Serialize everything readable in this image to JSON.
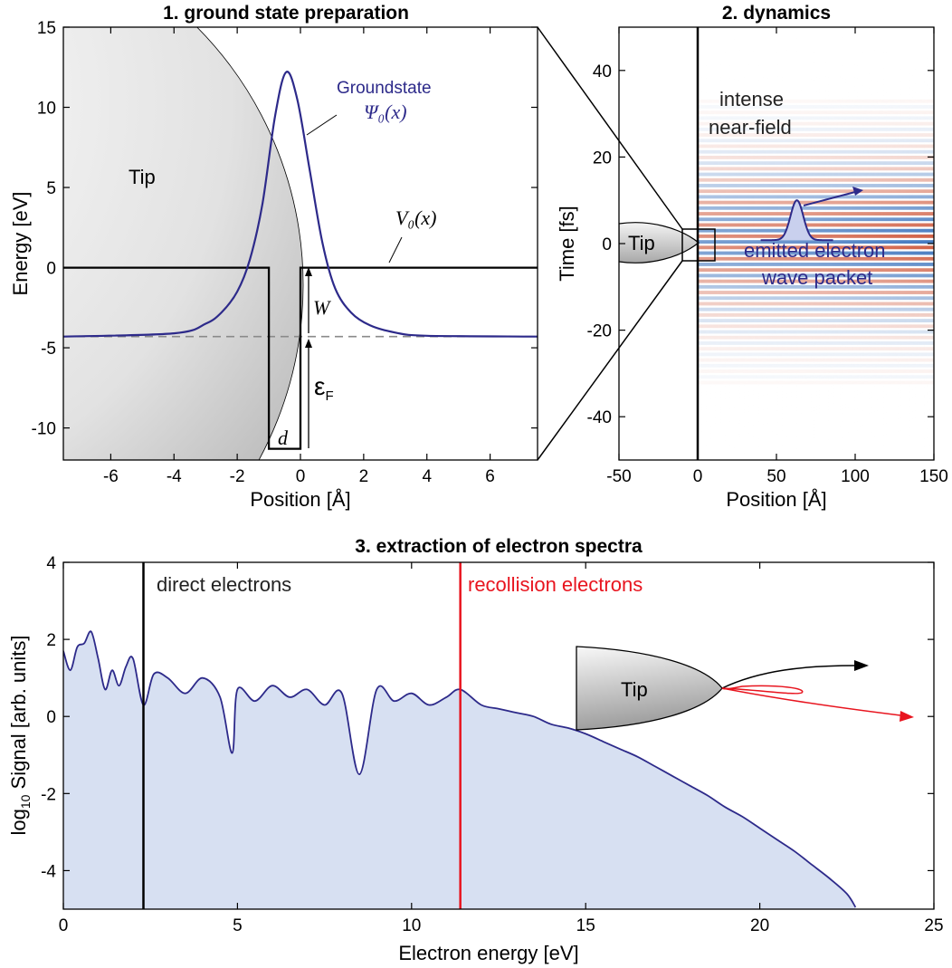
{
  "chart_data": [
    {
      "id": "ground-state",
      "type": "line",
      "title": "1. ground state preparation",
      "xlabel": "Position [Å]",
      "ylabel": "Energy [eV]",
      "xlim": [
        -7.5,
        7.5
      ],
      "ylim": [
        -12,
        15
      ],
      "xticks": [
        -6,
        -4,
        -2,
        0,
        2,
        4,
        6
      ],
      "yticks": [
        -10,
        -5,
        0,
        5,
        10,
        15
      ],
      "grid": false,
      "annotations": {
        "tip": "Tip",
        "groundstate": "Groundstate",
        "psi": "Ψ₀(x)",
        "potential": "V₀(x)",
        "work_function": "W",
        "fermi_symbol": "ε",
        "fermi_sub": "F",
        "width": "d"
      },
      "parameters": {
        "fermi_level": -4.3,
        "well_depth": -11.3,
        "well_left": -1.0,
        "well_right": 0.0,
        "psi_peak_x": -0.45,
        "psi_peak_y": 12.2
      },
      "series": [
        {
          "id": "potential",
          "color": "#000000",
          "x": [
            -7.5,
            -1.0,
            -1.0,
            0.0,
            0.0,
            7.5
          ],
          "y": [
            0,
            0,
            -11.3,
            -11.3,
            0,
            0
          ]
        },
        {
          "id": "groundstate",
          "color": "#2d2a8a",
          "x": [
            -7.5,
            -4,
            -3,
            -2.5,
            -2,
            -1.6,
            -1.2,
            -0.8,
            -0.45,
            -0.1,
            0.3,
            0.7,
            1.1,
            1.6,
            2.2,
            3,
            4,
            7.5
          ],
          "y": [
            -4.3,
            -4.1,
            -3.5,
            -2.8,
            -1.5,
            0.5,
            4.0,
            9.5,
            12.2,
            10.5,
            6.0,
            1.5,
            -1.3,
            -2.8,
            -3.6,
            -4.05,
            -4.25,
            -4.3
          ]
        },
        {
          "id": "fermi-level",
          "color": "#888888",
          "x": [
            -7.5,
            7.5
          ],
          "y": [
            -4.3,
            -4.3
          ]
        }
      ]
    },
    {
      "id": "dynamics",
      "type": "heatmap",
      "title": "2. dynamics",
      "xlabel": "Position [Å]",
      "ylabel": "Time [fs]",
      "xlim": [
        -50,
        150
      ],
      "ylim": [
        -50,
        50
      ],
      "xticks": [
        -50,
        0,
        50,
        100,
        150
      ],
      "yticks": [
        -40,
        -20,
        0,
        20,
        40
      ],
      "grid": false,
      "annotations": {
        "near_field_1": "intense",
        "near_field_2": "near-field",
        "packet_1": "emitted electron",
        "packet_2": "wave packet",
        "tip": "Tip"
      },
      "field": {
        "x_start": 0,
        "time_span": [
          -33,
          33
        ],
        "period_fs": 2.6,
        "colors": [
          "#c8401f",
          "#1f5fb4"
        ]
      }
    },
    {
      "id": "spectra",
      "type": "area",
      "title": "3. extraction of electron spectra",
      "xlabel": "Electron energy [eV]",
      "ylabel_prefix": "log",
      "ylabel_sub": "10",
      "ylabel_suffix": " Signal [arb. units]",
      "xlim": [
        0,
        25
      ],
      "ylim": [
        -5,
        4
      ],
      "xticks": [
        0,
        5,
        10,
        15,
        20,
        25
      ],
      "yticks": [
        -4,
        -2,
        0,
        2,
        4
      ],
      "grid": false,
      "markers": [
        {
          "x": 2.3,
          "label": "direct electrons",
          "color": "#000000"
        },
        {
          "x": 11.4,
          "label": "recollision electrons",
          "color": "#e8141e"
        }
      ],
      "tip_label": "Tip",
      "fill_color": "#d7e0f2",
      "line_color": "#2d2a8a",
      "series": [
        {
          "id": "spectrum",
          "x": [
            0,
            0.2,
            0.4,
            0.6,
            0.8,
            1.0,
            1.2,
            1.4,
            1.6,
            1.8,
            2.0,
            2.3,
            2.6,
            3.0,
            3.5,
            4.0,
            4.5,
            4.85,
            5.0,
            5.5,
            6.0,
            6.5,
            7.0,
            7.5,
            8.0,
            8.5,
            9.0,
            9.5,
            10.0,
            10.5,
            11.0,
            11.4,
            12.0,
            12.5,
            13.0,
            13.5,
            14.0,
            14.5,
            15.0,
            15.5,
            16.0,
            16.5,
            17.0,
            17.5,
            18.0,
            18.5,
            19.0,
            19.5,
            20.0,
            20.5,
            21.0,
            21.5,
            22.0,
            22.5,
            22.75
          ],
          "y": [
            1.7,
            1.2,
            1.8,
            1.9,
            2.2,
            1.5,
            0.7,
            1.2,
            0.8,
            1.3,
            1.5,
            0.3,
            1.1,
            1.0,
            0.6,
            1.0,
            0.5,
            -0.95,
            0.7,
            0.4,
            0.8,
            0.5,
            0.7,
            0.3,
            0.6,
            -1.5,
            0.7,
            0.4,
            0.6,
            0.3,
            0.5,
            0.7,
            0.3,
            0.2,
            0.1,
            0.0,
            -0.2,
            -0.3,
            -0.45,
            -0.65,
            -0.85,
            -1.05,
            -1.3,
            -1.55,
            -1.8,
            -2.05,
            -2.35,
            -2.6,
            -2.9,
            -3.2,
            -3.5,
            -3.85,
            -4.2,
            -4.6,
            -4.95
          ]
        }
      ]
    }
  ]
}
